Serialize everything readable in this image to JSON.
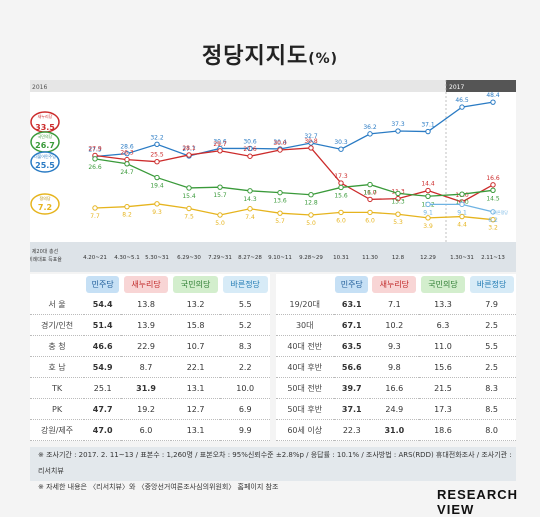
{
  "title": "정당지지도",
  "title_unit": "(%)",
  "chart_data": {
    "type": "line",
    "year_start": "2016",
    "year_2017": "2017",
    "x": [
      "제20대 총선 비례대표 득표율",
      "4.20~21",
      "4.30~5.1",
      "5.30~31",
      "6.29~30",
      "7.29~31",
      "8.27~28",
      "9.10~11",
      "9.28~29",
      "10.31",
      "11.30",
      "12.8",
      "12.29",
      "1.30~31",
      "2.11~13"
    ],
    "series": [
      {
        "name": "더불어민주당",
        "color": "#2a7bc4",
        "values": [
          25.5,
          27.5,
          28.6,
          32.2,
          27.7,
          30.6,
          30.6,
          30.4,
          32.7,
          30.3,
          36.2,
          37.3,
          37.1,
          46.5,
          48.4
        ]
      },
      {
        "name": "새누리당",
        "color": "#cc2b2b",
        "values": [
          33.5,
          27.9,
          26.3,
          25.5,
          28.1,
          29.7,
          27.6,
          30.0,
          30.8,
          17.3,
          11.0,
          11.3,
          14.4,
          10.0,
          16.6
        ]
      },
      {
        "name": "국민의당",
        "color": "#3a9a3a",
        "values": [
          26.7,
          26.6,
          24.7,
          19.4,
          15.4,
          15.7,
          14.3,
          13.6,
          12.8,
          15.6,
          16.7,
          13.3,
          12.2,
          13.0,
          14.5
        ]
      },
      {
        "name": "정의당",
        "color": "#e6b41e",
        "values": [
          7.2,
          7.7,
          8.2,
          9.3,
          7.5,
          5.0,
          7.4,
          5.7,
          5.0,
          6.0,
          6.0,
          5.3,
          3.9,
          4.4,
          3.2
        ]
      },
      {
        "name": "바른정당",
        "color": "#6fb3e3",
        "values": [
          null,
          null,
          null,
          null,
          null,
          null,
          null,
          null,
          null,
          null,
          null,
          null,
          9.1,
          9.1,
          6.2
        ]
      }
    ],
    "label_minjoo": "더불어민주당",
    "label_saenuri": "새누리당",
    "label_kukmin": "국민의당",
    "label_jeongui": "정의당",
    "label_bareun": "바른정당"
  },
  "table_left": {
    "headers": [
      "민주당",
      "새누리당",
      "국민의당",
      "바른정당"
    ],
    "rows": [
      {
        "label": "서 울",
        "values": [
          "54.4",
          "13.8",
          "13.2",
          "5.5"
        ],
        "bold": [
          0
        ]
      },
      {
        "label": "경기/인천",
        "values": [
          "51.4",
          "13.9",
          "15.8",
          "5.2"
        ],
        "bold": [
          0
        ]
      },
      {
        "label": "충 청",
        "values": [
          "46.6",
          "22.9",
          "10.7",
          "8.3"
        ],
        "bold": [
          0
        ]
      },
      {
        "label": "호 남",
        "values": [
          "54.9",
          "8.7",
          "22.1",
          "2.2"
        ],
        "bold": [
          0
        ]
      },
      {
        "label": "TK",
        "values": [
          "25.1",
          "31.9",
          "13.1",
          "10.0"
        ],
        "bold": [
          1
        ]
      },
      {
        "label": "PK",
        "values": [
          "47.7",
          "19.2",
          "12.7",
          "6.9"
        ],
        "bold": [
          0
        ]
      },
      {
        "label": "강원/제주",
        "values": [
          "47.0",
          "6.0",
          "13.1",
          "9.9"
        ],
        "bold": [
          0
        ]
      }
    ]
  },
  "table_right": {
    "headers": [
      "민주당",
      "새누리당",
      "국민의당",
      "바른정당"
    ],
    "rows": [
      {
        "label": "19/20대",
        "values": [
          "63.1",
          "7.1",
          "13.3",
          "7.9"
        ],
        "bold": [
          0
        ]
      },
      {
        "label": "30대",
        "values": [
          "67.1",
          "10.2",
          "6.3",
          "2.5"
        ],
        "bold": [
          0
        ]
      },
      {
        "label": "40대 전반",
        "values": [
          "63.5",
          "9.3",
          "11.0",
          "5.5"
        ],
        "bold": [
          0
        ]
      },
      {
        "label": "40대 후반",
        "values": [
          "56.6",
          "9.8",
          "15.6",
          "2.5"
        ],
        "bold": [
          0
        ]
      },
      {
        "label": "50대 전반",
        "values": [
          "39.7",
          "16.6",
          "21.5",
          "8.3"
        ],
        "bold": [
          0
        ]
      },
      {
        "label": "50대 후반",
        "values": [
          "37.1",
          "24.9",
          "17.3",
          "8.5"
        ],
        "bold": [
          0
        ]
      },
      {
        "label": "60세 이상",
        "values": [
          "22.3",
          "31.0",
          "18.6",
          "8.0"
        ],
        "bold": [
          1
        ]
      }
    ]
  },
  "footer": {
    "line1": "※ 조사기간 : 2017. 2. 11~13  /  표본수 : 1,260명  /  표본오차 : 95%신뢰수준 ±2.8%p  /  응답률 : 10.1%  /  조사방법 : ARS(RDD) 휴대전화조사  /  조사기관 : 리서치뷰",
    "line2": "※ 자세한 내용은 〈리서치뷰〉와 〈중앙선거여론조사심의위원회〉 홈페이지 참조"
  },
  "logo": {
    "line1": "RESEARCH",
    "line2": "VIEW"
  }
}
